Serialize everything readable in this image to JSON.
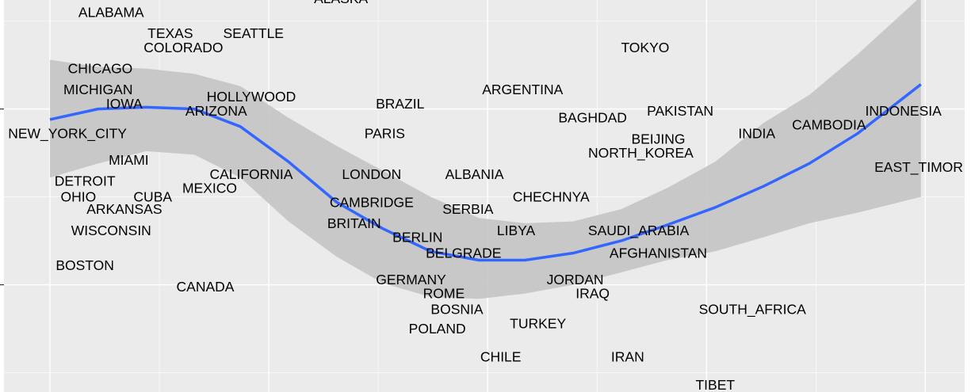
{
  "chart_data": {
    "type": "text-scatter",
    "labels": [
      "ALABAMA",
      "ALASKA",
      "TEXAS",
      "SEATTLE",
      "COLORADO",
      "TOKYO",
      "CHICAGO",
      "ARGENTINA",
      "MICHIGAN",
      "HOLLYWOOD",
      "IOWA",
      "BRAZIL",
      "ARIZONA",
      "PAKISTAN",
      "INDONESIA",
      "BAGHDAD",
      "CAMBODIA",
      "NEW_YORK_CITY",
      "PARIS",
      "INDIA",
      "BEIJING",
      "NORTH_KOREA",
      "MIAMI",
      "EAST_TIMOR",
      "CALIFORNIA",
      "LONDON",
      "ALBANIA",
      "DETROIT",
      "MEXICO",
      "OHIO",
      "CUBA",
      "CHECHNYA",
      "CAMBRIDGE",
      "ARKANSAS",
      "SERBIA",
      "BRITAIN",
      "WISCONSIN",
      "LIBYA",
      "SAUDI_ARABIA",
      "BERLIN",
      "BELGRADE",
      "AFGHANISTAN",
      "BOSTON",
      "GERMANY",
      "JORDAN",
      "CANADA",
      "ROME",
      "IRAQ",
      "BOSNIA",
      "SOUTH_AFRICA",
      "TURKEY",
      "POLAND",
      "CHILE",
      "IRAN",
      "TIBET"
    ],
    "x": [
      0.28,
      1.33,
      0.55,
      0.93,
      0.61,
      2.72,
      0.23,
      2.16,
      0.22,
      0.92,
      0.34,
      1.6,
      0.76,
      2.88,
      3.9,
      2.48,
      3.56,
      0.08,
      1.53,
      3.23,
      2.78,
      2.7,
      0.36,
      3.97,
      0.92,
      1.47,
      1.94,
      0.16,
      0.73,
      0.13,
      0.47,
      2.29,
      1.47,
      0.34,
      1.91,
      1.39,
      0.28,
      2.13,
      2.69,
      1.68,
      1.89,
      2.78,
      0.16,
      1.65,
      2.4,
      0.71,
      1.8,
      2.48,
      1.86,
      3.21,
      2.23,
      1.77,
      2.06,
      2.64,
      3.04
    ],
    "y": [
      1.55,
      1.63,
      1.43,
      1.43,
      1.35,
      1.35,
      1.23,
      1.11,
      1.11,
      1.07,
      1.03,
      1.03,
      0.99,
      0.99,
      0.99,
      0.95,
      0.91,
      0.86,
      0.86,
      0.86,
      0.83,
      0.75,
      0.71,
      0.67,
      0.63,
      0.63,
      0.63,
      0.59,
      0.55,
      0.5,
      0.5,
      0.5,
      0.47,
      0.43,
      0.43,
      0.35,
      0.31,
      0.31,
      0.31,
      0.27,
      0.18,
      0.18,
      0.11,
      0.03,
      0.03,
      -0.01,
      -0.05,
      -0.05,
      -0.14,
      -0.14,
      -0.22,
      -0.25,
      -0.41,
      -0.41,
      -0.57
    ],
    "smooth": {
      "color": "#3366ff",
      "band_color": "#c4c4c4",
      "x": [
        0,
        0.22,
        0.44,
        0.66,
        0.87,
        1.09,
        1.31,
        1.52,
        1.74,
        1.96,
        2.17,
        2.39,
        2.61,
        2.82,
        3.04,
        3.26,
        3.47,
        3.69,
        3.98
      ],
      "y": [
        0.94,
        1.0,
        1.01,
        1.0,
        0.9,
        0.7,
        0.47,
        0.32,
        0.19,
        0.14,
        0.14,
        0.18,
        0.25,
        0.34,
        0.44,
        0.56,
        0.69,
        0.86,
        1.14
      ],
      "upper": [
        1.28,
        1.24,
        1.23,
        1.2,
        1.13,
        0.95,
        0.79,
        0.65,
        0.5,
        0.38,
        0.35,
        0.36,
        0.43,
        0.55,
        0.7,
        0.92,
        1.08,
        1.31,
        1.64
      ],
      "lower": [
        0.61,
        0.69,
        0.76,
        0.74,
        0.61,
        0.36,
        0.16,
        0.01,
        -0.07,
        -0.08,
        -0.05,
        0,
        0.07,
        0.14,
        0.19,
        0.27,
        0.35,
        0.41,
        0.5
      ]
    },
    "xlim": [
      -0.21,
      4.18
    ],
    "ylim": [
      -0.61,
      1.62
    ],
    "xticks": [
      0,
      0.5,
      1,
      1.5,
      2,
      2.5,
      3,
      3.5,
      4
    ],
    "yticks": [
      -0.5,
      0,
      0.5,
      1,
      1.5
    ],
    "grid": true,
    "panel_color": "#ebebeb"
  }
}
